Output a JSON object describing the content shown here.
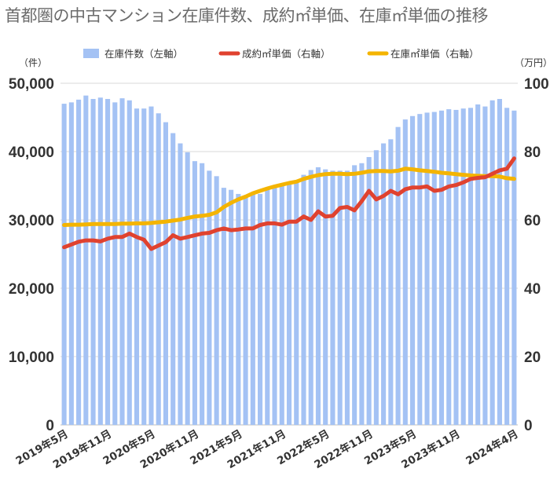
{
  "title": "首都圏の中古マンション在庫件数、成約㎡単価、在庫㎡単価の推移",
  "chart_data": {
    "type": "bar+line",
    "title": "首都圏の中古マンション在庫件数、成約㎡単価、在庫㎡単価の推移",
    "left_unit": "（件）",
    "right_unit": "（万円）",
    "y_left_lim": [
      0,
      50000
    ],
    "y_right_lim": [
      0,
      100
    ],
    "y_left_ticks": [
      "0",
      "10,000",
      "20,000",
      "30,000",
      "40,000",
      "50,000"
    ],
    "y_right_ticks": [
      "0",
      "20",
      "40",
      "60",
      "80",
      "100"
    ],
    "x_tick_labels": [
      "2019年5月",
      "2019年11月",
      "2020年5月",
      "2020年11月",
      "2021年5月",
      "2021年11月",
      "2022年5月",
      "2022年11月",
      "2023年5月",
      "2023年11月",
      "2024年4月"
    ],
    "grid": true,
    "legend_position": "top",
    "series": [
      {
        "name": "在庫件数（左軸）",
        "type": "bar",
        "axis": "left",
        "color": "#a4c2f4",
        "values": [
          47000,
          47200,
          47600,
          48200,
          47700,
          47900,
          47700,
          47200,
          47800,
          47500,
          46300,
          46300,
          46600,
          45600,
          44300,
          42700,
          41200,
          39900,
          38600,
          38300,
          37200,
          36400,
          34700,
          34400,
          33800,
          33600,
          33800,
          33800,
          34500,
          34800,
          35200,
          35400,
          35700,
          36600,
          37300,
          37700,
          37400,
          37200,
          37200,
          37200,
          38000,
          38300,
          39200,
          40200,
          41200,
          41800,
          43600,
          44700,
          45200,
          45500,
          45700,
          45800,
          46000,
          46200,
          46100,
          46300,
          46400,
          46900,
          46600,
          47500,
          47700,
          46400,
          46000
        ]
      },
      {
        "name": "成約㎡単価（右軸）",
        "type": "line",
        "axis": "right",
        "color": "#e0422f",
        "values": [
          52,
          52.8,
          53.6,
          54,
          54,
          53.7,
          54.5,
          55,
          55,
          56,
          55,
          54.2,
          51.5,
          52.5,
          53.5,
          55.5,
          54.5,
          55,
          55.5,
          56,
          56.2,
          57,
          57.5,
          57,
          57.2,
          57.5,
          57.5,
          58.5,
          59,
          59,
          58.6,
          59.5,
          59.5,
          61,
          60,
          62.5,
          61,
          61.2,
          63.5,
          63.8,
          62.8,
          65.5,
          68.5,
          66,
          67,
          68.5,
          67.5,
          69,
          69.5,
          69.5,
          69.8,
          68.5,
          68.8,
          69.8,
          70.2,
          71,
          72,
          72.3,
          72.5,
          73.5,
          74.5,
          75,
          78
        ]
      },
      {
        "name": "在庫㎡単価（右軸）",
        "type": "line",
        "axis": "right",
        "color": "#f4b400",
        "values": [
          58.5,
          58.6,
          58.6,
          58.7,
          58.8,
          58.8,
          58.8,
          58.8,
          58.9,
          58.9,
          59,
          59,
          59.1,
          59.3,
          59.5,
          59.8,
          60.1,
          60.6,
          61,
          61.2,
          61.5,
          62.2,
          63.8,
          65,
          66,
          66.8,
          67.8,
          68.5,
          69.2,
          69.8,
          70.3,
          70.8,
          71.2,
          72,
          72.6,
          73.1,
          73.4,
          73.5,
          73.5,
          73.4,
          73.5,
          73.8,
          74.2,
          74.3,
          74.3,
          74.2,
          74.4,
          75,
          74.8,
          74.5,
          74.3,
          74.1,
          73.8,
          73.6,
          73.4,
          73.2,
          73,
          72.9,
          72.8,
          72.8,
          72.7,
          72.2,
          72
        ]
      }
    ]
  }
}
